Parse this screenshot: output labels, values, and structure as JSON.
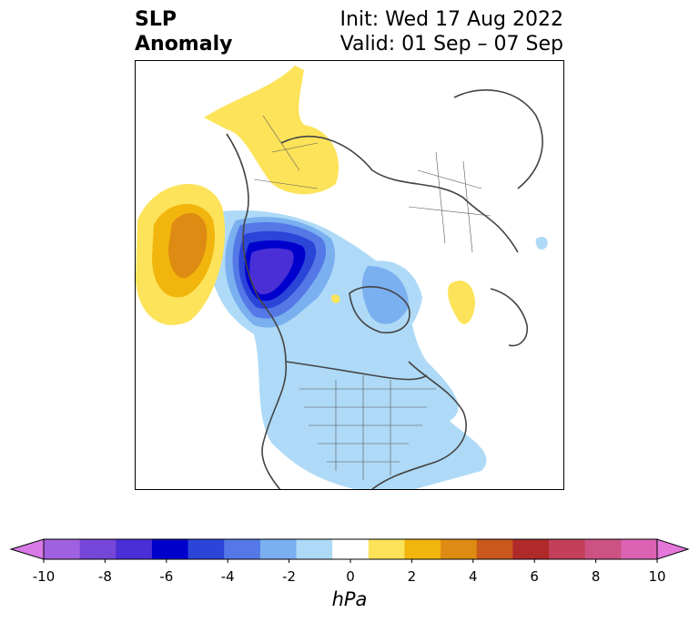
{
  "title": {
    "left_line1": "SLP",
    "left_line2": "Anomaly",
    "right_line1": "Init: Wed 17 Aug 2022",
    "right_line2": "Valid: 01 Sep – 07 Sep"
  },
  "colorbar": {
    "unit": "hPa",
    "ticks": [
      "-10",
      "-8",
      "-6",
      "-4",
      "-2",
      "0",
      "2",
      "4",
      "6",
      "8",
      "10"
    ],
    "colors": [
      "#d87be6",
      "#a061e0",
      "#7646d8",
      "#4a2fd6",
      "#0000cd",
      "#2b45d9",
      "#5478e6",
      "#7aaff0",
      "#aedaf7",
      "#ffffff",
      "#fde35a",
      "#f1b50d",
      "#dd8b12",
      "#c8581b",
      "#b02a2a",
      "#c2405a",
      "#cc5284",
      "#db63b2",
      "#e477d9"
    ]
  },
  "map": {
    "region": "Northern Hemisphere polar view",
    "shading": [
      {
        "name": "warm-pacific-high",
        "color": "#fde35a"
      },
      {
        "name": "warm-pacific-core",
        "color": "#f1b50d"
      },
      {
        "name": "warm-pacific-peak",
        "color": "#dd8b12"
      },
      {
        "name": "cold-arctic-low",
        "color": "#0000cd"
      }
    ]
  }
}
